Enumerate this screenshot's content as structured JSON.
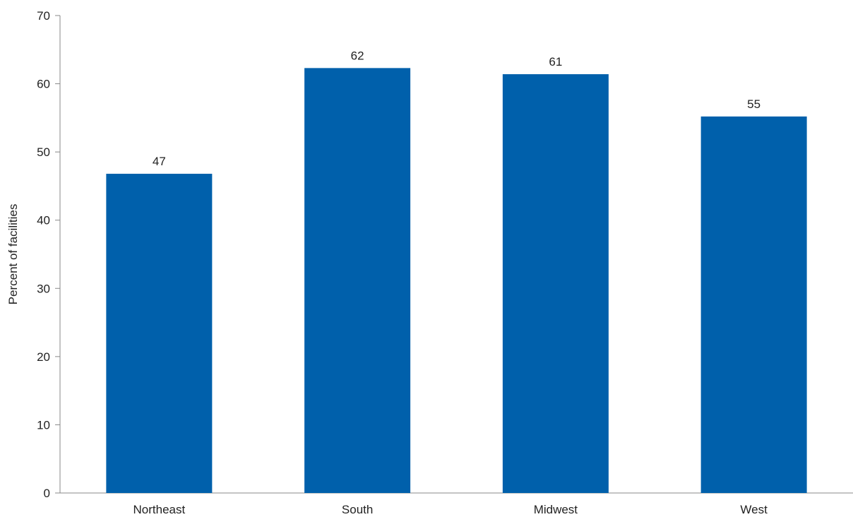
{
  "chart_data": {
    "type": "bar",
    "title": "",
    "xlabel": "",
    "ylabel": "Percent of facilities",
    "categories": [
      "Northeast",
      "South",
      "Midwest",
      "West"
    ],
    "values": [
      47,
      62,
      61,
      55
    ],
    "plotted_values": [
      46.8,
      62.3,
      61.4,
      55.2
    ],
    "ylim": [
      0,
      70
    ],
    "yticks": [
      0,
      10,
      20,
      30,
      40,
      50,
      60,
      70
    ],
    "grid": false,
    "legend": "none",
    "bar_color": "#0060AB",
    "axis_color": "#888888"
  }
}
